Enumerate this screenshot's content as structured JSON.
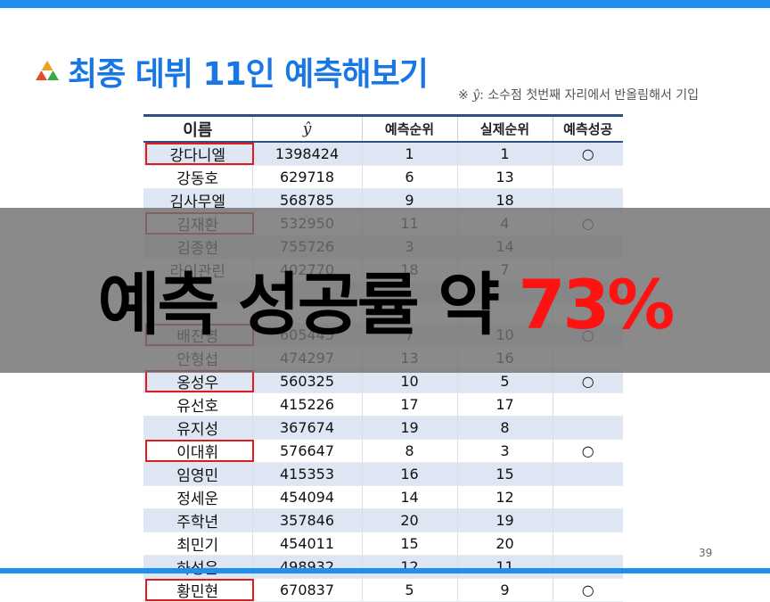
{
  "slide": {
    "title": "최종 데뷔 11인 예측해보기",
    "note_prefix": "※ ",
    "note_symbol": "ŷ",
    "note_text": ": 소수점 첫번째 자리에서 반올림해서 기입",
    "page_number": "39"
  },
  "table": {
    "headers": [
      "이름",
      "ŷ",
      "예측순위",
      "실제순위",
      "예측성공"
    ],
    "rows": [
      {
        "name": "강다니엘",
        "yhat": "1398424",
        "pred": "1",
        "actual": "1",
        "success": "○",
        "boxed": true
      },
      {
        "name": "강동호",
        "yhat": "629718",
        "pred": "6",
        "actual": "13",
        "success": "",
        "boxed": false
      },
      {
        "name": "김사무엘",
        "yhat": "568785",
        "pred": "9",
        "actual": "18",
        "success": "",
        "boxed": false
      },
      {
        "name": "김재환",
        "yhat": "532950",
        "pred": "11",
        "actual": "4",
        "success": "○",
        "boxed": true
      },
      {
        "name": "김종현",
        "yhat": "755726",
        "pred": "3",
        "actual": "14",
        "success": "",
        "boxed": false
      },
      {
        "name": "라이관린",
        "yhat": "402770",
        "pred": "18",
        "actual": "7",
        "success": "",
        "boxed": false
      },
      {
        "name": "",
        "yhat": "",
        "pred": "",
        "actual": "",
        "success": "",
        "boxed": false
      },
      {
        "name": "",
        "yhat": "",
        "pred": "",
        "actual": "",
        "success": "",
        "boxed": false
      },
      {
        "name": "배진영",
        "yhat": "605445",
        "pred": "7",
        "actual": "10",
        "success": "○",
        "boxed": true
      },
      {
        "name": "안형섭",
        "yhat": "474297",
        "pred": "13",
        "actual": "16",
        "success": "",
        "boxed": false
      },
      {
        "name": "옹성우",
        "yhat": "560325",
        "pred": "10",
        "actual": "5",
        "success": "○",
        "boxed": true
      },
      {
        "name": "유선호",
        "yhat": "415226",
        "pred": "17",
        "actual": "17",
        "success": "",
        "boxed": false
      },
      {
        "name": "유지성",
        "yhat": "367674",
        "pred": "19",
        "actual": "8",
        "success": "",
        "boxed": false
      },
      {
        "name": "이대휘",
        "yhat": "576647",
        "pred": "8",
        "actual": "3",
        "success": "○",
        "boxed": true
      },
      {
        "name": "임영민",
        "yhat": "415353",
        "pred": "16",
        "actual": "15",
        "success": "",
        "boxed": false
      },
      {
        "name": "정세운",
        "yhat": "454094",
        "pred": "14",
        "actual": "12",
        "success": "",
        "boxed": false
      },
      {
        "name": "주학년",
        "yhat": "357846",
        "pred": "20",
        "actual": "19",
        "success": "",
        "boxed": false
      },
      {
        "name": "최민기",
        "yhat": "454011",
        "pred": "15",
        "actual": "20",
        "success": "",
        "boxed": false
      },
      {
        "name": "하성운",
        "yhat": "498932",
        "pred": "12",
        "actual": "11",
        "success": "",
        "boxed": false
      },
      {
        "name": "황민현",
        "yhat": "670837",
        "pred": "5",
        "actual": "9",
        "success": "○",
        "boxed": true
      }
    ]
  },
  "overlay": {
    "text": "예측 성공률 약",
    "percent": "73%"
  },
  "colors": {
    "accent_blue": "#1877e4",
    "bar_blue": "#1f8ff0",
    "highlight_red": "#e01b1b",
    "percent_red": "#ff1212"
  }
}
